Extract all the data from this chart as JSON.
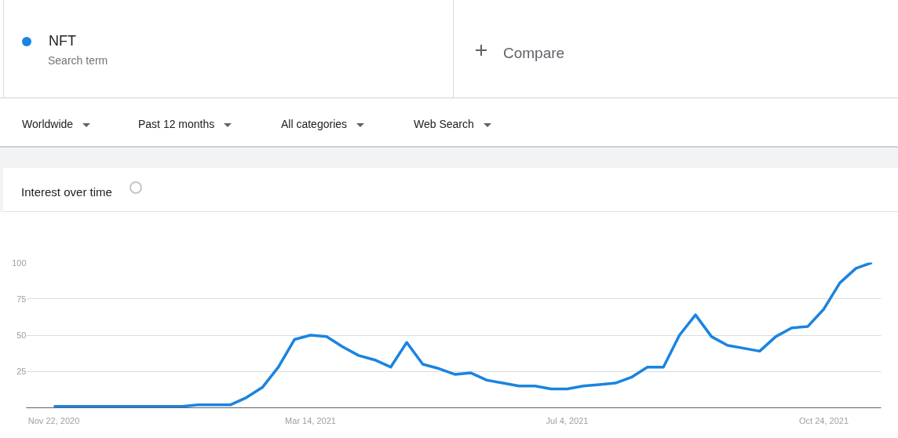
{
  "chart_data": {
    "type": "line",
    "title": "Interest over time",
    "annotations": [
      "Search term",
      "Compare",
      "Worldwide",
      "Past 12 months",
      "All categories",
      "Web Search"
    ],
    "x": [
      "2020-11-22",
      "2020-11-29",
      "2020-12-06",
      "2020-12-13",
      "2020-12-20",
      "2020-12-27",
      "2021-01-03",
      "2021-01-10",
      "2021-01-17",
      "2021-01-24",
      "2021-01-31",
      "2021-02-07",
      "2021-02-14",
      "2021-02-21",
      "2021-02-28",
      "2021-03-07",
      "2021-03-14",
      "2021-03-21",
      "2021-03-28",
      "2021-04-04",
      "2021-04-11",
      "2021-04-18",
      "2021-04-25",
      "2021-05-02",
      "2021-05-09",
      "2021-05-16",
      "2021-05-23",
      "2021-05-30",
      "2021-06-06",
      "2021-06-13",
      "2021-06-20",
      "2021-06-27",
      "2021-07-04",
      "2021-07-11",
      "2021-07-18",
      "2021-07-25",
      "2021-08-01",
      "2021-08-08",
      "2021-08-15",
      "2021-08-22",
      "2021-08-29",
      "2021-09-05",
      "2021-09-12",
      "2021-09-19",
      "2021-09-26",
      "2021-10-03",
      "2021-10-10",
      "2021-10-17",
      "2021-10-24",
      "2021-10-31",
      "2021-11-07",
      "2021-11-14"
    ],
    "series": [
      {
        "name": "NFT",
        "color": "#1a84e0",
        "values": [
          1,
          1,
          1,
          1,
          1,
          1,
          1,
          1,
          1,
          2,
          2,
          2,
          7,
          14,
          28,
          47,
          50,
          49,
          42,
          36,
          33,
          28,
          45,
          30,
          27,
          23,
          24,
          19,
          17,
          15,
          15,
          13,
          13,
          15,
          16,
          17,
          21,
          28,
          28,
          50,
          64,
          49,
          43,
          41,
          39,
          49,
          55,
          56,
          68,
          86,
          96,
          100
        ]
      }
    ],
    "xlim": [
      "2020-11-10",
      "2021-11-18"
    ],
    "xticks": [
      {
        "value": "2020-11-22",
        "label": "Nov 22, 2020"
      },
      {
        "value": "2021-03-14",
        "label": "Mar 14, 2021"
      },
      {
        "value": "2021-07-04",
        "label": "Jul 4, 2021"
      },
      {
        "value": "2021-10-24",
        "label": "Oct 24, 2021"
      }
    ],
    "ylim": [
      0,
      100
    ],
    "yticks": [
      25,
      50,
      75,
      100
    ],
    "grid": "y",
    "legend": "top left",
    "marker": "none",
    "line_style": "solid"
  }
}
